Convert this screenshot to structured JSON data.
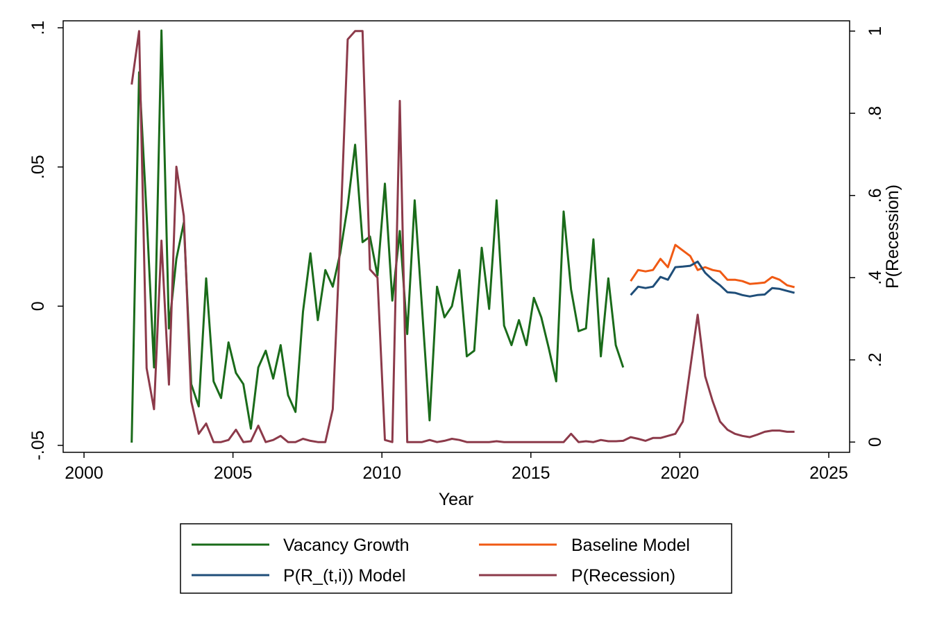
{
  "chart_data": {
    "type": "line",
    "xlabel": "Year",
    "ylabel_left": "",
    "ylabel_right": "P(Recession)",
    "xlim": [
      1999.3,
      2025.7
    ],
    "ylim_left": [
      -0.0525,
      0.1025
    ],
    "ylim_right": [
      -0.025,
      1.025
    ],
    "x_ticks": [
      2000,
      2005,
      2010,
      2015,
      2020,
      2025
    ],
    "x_tick_labels": [
      "2000",
      "2005",
      "2010",
      "2015",
      "2020",
      "2025"
    ],
    "y_left_ticks": [
      -0.05,
      0,
      0.05,
      0.1
    ],
    "y_left_tick_labels": [
      "-.05",
      "0",
      ".05",
      ".1"
    ],
    "y_right_ticks": [
      0,
      0.2,
      0.4,
      0.6,
      0.8,
      1.0
    ],
    "y_right_tick_labels": [
      "0",
      ".2",
      ".4",
      ".6",
      ".8",
      "1"
    ],
    "grid": false,
    "legend_position": "bottom",
    "series": [
      {
        "name": "Vacancy Growth",
        "axis": "left",
        "color": "#1a6b1a",
        "x": [
          2001.6,
          2001.85,
          2002.1,
          2002.35,
          2002.6,
          2002.85,
          2003.1,
          2003.35,
          2003.6,
          2003.85,
          2004.1,
          2004.35,
          2004.6,
          2004.85,
          2005.1,
          2005.35,
          2005.6,
          2005.85,
          2006.1,
          2006.35,
          2006.6,
          2006.85,
          2007.1,
          2007.35,
          2007.6,
          2007.85,
          2008.1,
          2008.35,
          2008.6,
          2008.85,
          2009.1,
          2009.35,
          2009.6,
          2009.85,
          2010.1,
          2010.35,
          2010.6,
          2010.85,
          2011.1,
          2011.35,
          2011.6,
          2011.85,
          2012.1,
          2012.35,
          2012.6,
          2012.85,
          2013.1,
          2013.35,
          2013.6,
          2013.85,
          2014.1,
          2014.35,
          2014.6,
          2014.85,
          2015.1,
          2015.35,
          2015.6,
          2015.85,
          2016.1,
          2016.35,
          2016.6,
          2016.85,
          2017.1,
          2017.35,
          2017.6,
          2017.85,
          2018.1
        ],
        "y": [
          -0.049,
          0.084,
          0.033,
          -0.022,
          0.099,
          -0.008,
          0.017,
          0.03,
          -0.028,
          -0.036,
          0.01,
          -0.027,
          -0.033,
          -0.013,
          -0.024,
          -0.028,
          -0.044,
          -0.022,
          -0.016,
          -0.026,
          -0.014,
          -0.032,
          -0.038,
          -0.002,
          0.019,
          -0.005,
          0.013,
          0.007,
          0.019,
          0.036,
          0.058,
          0.023,
          0.025,
          0.011,
          0.044,
          0.002,
          0.027,
          -0.01,
          0.038,
          -0.001,
          -0.041,
          0.007,
          -0.004,
          0.0,
          0.013,
          -0.018,
          -0.016,
          0.021,
          -0.001,
          0.038,
          -0.007,
          -0.014,
          -0.005,
          -0.014,
          0.003,
          -0.004,
          -0.015,
          -0.027,
          0.034,
          0.006,
          -0.009,
          -0.008,
          0.024,
          -0.018,
          0.01,
          -0.014,
          -0.022
        ]
      },
      {
        "name": "Baseline Model",
        "axis": "left",
        "color": "#f05a14",
        "x": [
          2018.35,
          2018.6,
          2018.85,
          2019.1,
          2019.35,
          2019.6,
          2019.85,
          2020.1,
          2020.35,
          2020.6,
          2020.85,
          2021.1,
          2021.35,
          2021.6,
          2021.85,
          2022.1,
          2022.35,
          2022.6,
          2022.85,
          2023.1,
          2023.35,
          2023.6,
          2023.85
        ],
        "y": [
          0.009,
          0.013,
          0.0125,
          0.013,
          0.017,
          0.014,
          0.022,
          0.02,
          0.018,
          0.013,
          0.014,
          0.013,
          0.0125,
          0.0095,
          0.0095,
          0.009,
          0.008,
          0.0082,
          0.0085,
          0.0105,
          0.0095,
          0.0075,
          0.0068
        ]
      },
      {
        "name": "P(R_(t,i)) Model",
        "axis": "left",
        "color": "#1f4e79",
        "x": [
          2018.35,
          2018.6,
          2018.85,
          2019.1,
          2019.35,
          2019.6,
          2019.85,
          2020.1,
          2020.35,
          2020.6,
          2020.85,
          2021.1,
          2021.35,
          2021.6,
          2021.85,
          2022.1,
          2022.35,
          2022.6,
          2022.85,
          2023.1,
          2023.35,
          2023.6,
          2023.85
        ],
        "y": [
          0.004,
          0.007,
          0.0065,
          0.007,
          0.0105,
          0.0095,
          0.014,
          0.0142,
          0.0145,
          0.016,
          0.012,
          0.0095,
          0.0075,
          0.005,
          0.0048,
          0.004,
          0.0035,
          0.004,
          0.0042,
          0.0065,
          0.0062,
          0.0055,
          0.0048
        ]
      },
      {
        "name": "P(Recession)",
        "axis": "right",
        "color": "#8c3a4a",
        "x": [
          2001.6,
          2001.85,
          2002.1,
          2002.35,
          2002.6,
          2002.85,
          2003.1,
          2003.35,
          2003.6,
          2003.85,
          2004.1,
          2004.35,
          2004.6,
          2004.85,
          2005.1,
          2005.35,
          2005.6,
          2005.85,
          2006.1,
          2006.35,
          2006.6,
          2006.85,
          2007.1,
          2007.35,
          2007.6,
          2007.85,
          2008.1,
          2008.35,
          2008.6,
          2008.85,
          2009.1,
          2009.35,
          2009.6,
          2009.85,
          2010.1,
          2010.35,
          2010.6,
          2010.85,
          2011.1,
          2011.35,
          2011.6,
          2011.85,
          2012.1,
          2012.35,
          2012.6,
          2012.85,
          2013.1,
          2013.35,
          2013.6,
          2013.85,
          2014.1,
          2014.35,
          2014.6,
          2014.85,
          2015.1,
          2015.35,
          2015.6,
          2015.85,
          2016.1,
          2016.35,
          2016.6,
          2016.85,
          2017.1,
          2017.35,
          2017.6,
          2017.85,
          2018.1,
          2018.35,
          2018.6,
          2018.85,
          2019.1,
          2019.35,
          2019.6,
          2019.85,
          2020.1,
          2020.35,
          2020.6,
          2020.85,
          2021.1,
          2021.35,
          2021.6,
          2021.85,
          2022.1,
          2022.35,
          2022.6,
          2022.85,
          2023.1,
          2023.35,
          2023.6,
          2023.85
        ],
        "y": [
          0.87,
          1.0,
          0.18,
          0.08,
          0.49,
          0.14,
          0.67,
          0.55,
          0.1,
          0.02,
          0.045,
          0.0,
          0.0,
          0.005,
          0.03,
          0.0,
          0.002,
          0.04,
          0.0,
          0.005,
          0.015,
          0.0,
          0.0,
          0.008,
          0.003,
          0.0,
          0.0,
          0.08,
          0.5,
          0.98,
          1.0,
          1.0,
          0.42,
          0.4,
          0.005,
          0.0,
          0.83,
          0.0,
          0.0,
          0.0,
          0.005,
          0.0,
          0.003,
          0.008,
          0.005,
          0.0,
          0.0,
          0.0,
          0.0,
          0.002,
          0.0,
          0.0,
          0.0,
          0.0,
          0.0,
          0.0,
          0.0,
          0.0,
          0.0,
          0.02,
          0.0,
          0.002,
          0.0,
          0.005,
          0.002,
          0.002,
          0.003,
          0.012,
          0.008,
          0.003,
          0.01,
          0.01,
          0.015,
          0.02,
          0.05,
          0.18,
          0.31,
          0.16,
          0.1,
          0.05,
          0.03,
          0.02,
          0.015,
          0.012,
          0.018,
          0.025,
          0.028,
          0.028,
          0.025,
          0.025
        ]
      }
    ]
  }
}
